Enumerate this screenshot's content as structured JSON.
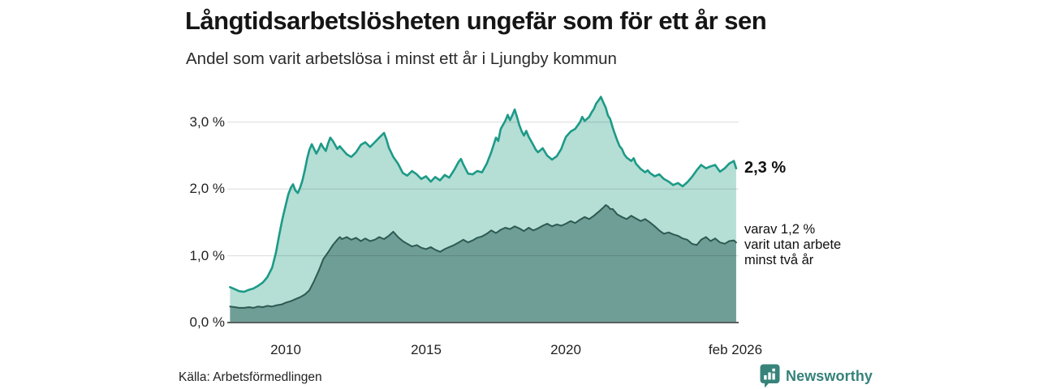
{
  "header": {
    "title": "Långtidsarbetslösheten ungefär som för ett år sen",
    "subtitle": "Andel som varit arbetslösa i minst ett år i Ljungby kommun"
  },
  "chart_data": {
    "type": "area",
    "title": "Långtidsarbetslösheten ungefär som för ett år sen",
    "subtitle": "Andel som varit arbetslösa i minst ett år i Ljungby kommun",
    "unit": "%",
    "grid": true,
    "x_axis": {
      "unit": "decimal_year_monthly",
      "range": [
        2007.9,
        2026.17
      ],
      "ticks": [
        {
          "value": 2010,
          "label": "2010"
        },
        {
          "value": 2015,
          "label": "2015"
        },
        {
          "value": 2020,
          "label": "2020"
        },
        {
          "value": 2026.08,
          "label": "feb 2026"
        }
      ]
    },
    "y_axis": {
      "range": [
        0,
        3.5
      ],
      "ticks": [
        {
          "value": 0,
          "label": "0,0 %"
        },
        {
          "value": 1,
          "label": "1,0 %"
        },
        {
          "value": 2,
          "label": "2,0 %"
        },
        {
          "value": 3,
          "label": "3,0 %"
        }
      ]
    },
    "annotations": {
      "end_value": "2,3 %",
      "end_note": "varav 1,2 %\nvarit utan arbete\nminst två år"
    },
    "series": [
      {
        "name": "Andel arbetslösa minst ett år",
        "latest_label": "2,3 %",
        "line_color": "#1d9a87",
        "fill_color": "#b5ded5",
        "points": [
          [
            2008.0,
            0.53
          ],
          [
            2008.17,
            0.5
          ],
          [
            2008.33,
            0.47
          ],
          [
            2008.5,
            0.46
          ],
          [
            2008.67,
            0.49
          ],
          [
            2008.83,
            0.51
          ],
          [
            2009.0,
            0.55
          ],
          [
            2009.17,
            0.6
          ],
          [
            2009.33,
            0.68
          ],
          [
            2009.5,
            0.82
          ],
          [
            2009.64,
            1.05
          ],
          [
            2009.75,
            1.3
          ],
          [
            2009.87,
            1.55
          ],
          [
            2010.0,
            1.78
          ],
          [
            2010.08,
            1.92
          ],
          [
            2010.17,
            2.02
          ],
          [
            2010.25,
            2.07
          ],
          [
            2010.33,
            1.98
          ],
          [
            2010.42,
            1.94
          ],
          [
            2010.5,
            2.02
          ],
          [
            2010.58,
            2.12
          ],
          [
            2010.67,
            2.28
          ],
          [
            2010.75,
            2.45
          ],
          [
            2010.83,
            2.58
          ],
          [
            2010.92,
            2.67
          ],
          [
            2011.0,
            2.6
          ],
          [
            2011.08,
            2.53
          ],
          [
            2011.17,
            2.6
          ],
          [
            2011.25,
            2.68
          ],
          [
            2011.33,
            2.62
          ],
          [
            2011.42,
            2.57
          ],
          [
            2011.5,
            2.68
          ],
          [
            2011.58,
            2.77
          ],
          [
            2011.67,
            2.72
          ],
          [
            2011.75,
            2.66
          ],
          [
            2011.83,
            2.6
          ],
          [
            2011.92,
            2.64
          ],
          [
            2012.0,
            2.6
          ],
          [
            2012.17,
            2.52
          ],
          [
            2012.33,
            2.48
          ],
          [
            2012.5,
            2.55
          ],
          [
            2012.67,
            2.66
          ],
          [
            2012.83,
            2.7
          ],
          [
            2013.0,
            2.63
          ],
          [
            2013.17,
            2.7
          ],
          [
            2013.33,
            2.77
          ],
          [
            2013.5,
            2.84
          ],
          [
            2013.58,
            2.75
          ],
          [
            2013.67,
            2.62
          ],
          [
            2013.83,
            2.48
          ],
          [
            2014.0,
            2.38
          ],
          [
            2014.17,
            2.24
          ],
          [
            2014.33,
            2.2
          ],
          [
            2014.5,
            2.27
          ],
          [
            2014.67,
            2.22
          ],
          [
            2014.83,
            2.15
          ],
          [
            2015.0,
            2.19
          ],
          [
            2015.17,
            2.11
          ],
          [
            2015.33,
            2.18
          ],
          [
            2015.5,
            2.13
          ],
          [
            2015.67,
            2.21
          ],
          [
            2015.83,
            2.17
          ],
          [
            2016.0,
            2.28
          ],
          [
            2016.17,
            2.41
          ],
          [
            2016.25,
            2.45
          ],
          [
            2016.33,
            2.37
          ],
          [
            2016.5,
            2.23
          ],
          [
            2016.67,
            2.22
          ],
          [
            2016.83,
            2.27
          ],
          [
            2017.0,
            2.25
          ],
          [
            2017.17,
            2.38
          ],
          [
            2017.33,
            2.55
          ],
          [
            2017.5,
            2.77
          ],
          [
            2017.58,
            2.72
          ],
          [
            2017.67,
            2.9
          ],
          [
            2017.83,
            3.02
          ],
          [
            2017.92,
            3.11
          ],
          [
            2018.0,
            3.03
          ],
          [
            2018.08,
            3.1
          ],
          [
            2018.17,
            3.19
          ],
          [
            2018.25,
            3.08
          ],
          [
            2018.33,
            2.96
          ],
          [
            2018.42,
            2.86
          ],
          [
            2018.5,
            2.8
          ],
          [
            2018.58,
            2.87
          ],
          [
            2018.67,
            2.78
          ],
          [
            2018.83,
            2.66
          ],
          [
            2018.92,
            2.59
          ],
          [
            2019.0,
            2.55
          ],
          [
            2019.17,
            2.61
          ],
          [
            2019.33,
            2.5
          ],
          [
            2019.5,
            2.44
          ],
          [
            2019.67,
            2.49
          ],
          [
            2019.83,
            2.6
          ],
          [
            2019.92,
            2.7
          ],
          [
            2020.0,
            2.78
          ],
          [
            2020.17,
            2.86
          ],
          [
            2020.33,
            2.9
          ],
          [
            2020.5,
            3.0
          ],
          [
            2020.58,
            3.08
          ],
          [
            2020.67,
            3.02
          ],
          [
            2020.83,
            3.08
          ],
          [
            2020.92,
            3.15
          ],
          [
            2021.0,
            3.2
          ],
          [
            2021.08,
            3.28
          ],
          [
            2021.17,
            3.33
          ],
          [
            2021.25,
            3.38
          ],
          [
            2021.33,
            3.3
          ],
          [
            2021.42,
            3.22
          ],
          [
            2021.5,
            3.1
          ],
          [
            2021.58,
            3.05
          ],
          [
            2021.67,
            2.92
          ],
          [
            2021.75,
            2.82
          ],
          [
            2021.83,
            2.73
          ],
          [
            2021.92,
            2.64
          ],
          [
            2022.0,
            2.6
          ],
          [
            2022.08,
            2.52
          ],
          [
            2022.17,
            2.47
          ],
          [
            2022.33,
            2.42
          ],
          [
            2022.42,
            2.46
          ],
          [
            2022.5,
            2.38
          ],
          [
            2022.67,
            2.3
          ],
          [
            2022.83,
            2.25
          ],
          [
            2022.92,
            2.28
          ],
          [
            2023.0,
            2.24
          ],
          [
            2023.17,
            2.19
          ],
          [
            2023.33,
            2.22
          ],
          [
            2023.5,
            2.15
          ],
          [
            2023.67,
            2.11
          ],
          [
            2023.83,
            2.06
          ],
          [
            2024.0,
            2.09
          ],
          [
            2024.17,
            2.04
          ],
          [
            2024.33,
            2.1
          ],
          [
            2024.5,
            2.18
          ],
          [
            2024.67,
            2.28
          ],
          [
            2024.83,
            2.36
          ],
          [
            2025.0,
            2.31
          ],
          [
            2025.17,
            2.34
          ],
          [
            2025.33,
            2.36
          ],
          [
            2025.5,
            2.26
          ],
          [
            2025.67,
            2.31
          ],
          [
            2025.83,
            2.38
          ],
          [
            2026.0,
            2.42
          ],
          [
            2026.08,
            2.31
          ]
        ]
      },
      {
        "name": "Varav utan arbete minst två år",
        "latest_label": "1,2 %",
        "line_color": "#2d5a53",
        "fill_color": "#6f9e97",
        "points": [
          [
            2008.0,
            0.24
          ],
          [
            2008.17,
            0.23
          ],
          [
            2008.33,
            0.22
          ],
          [
            2008.5,
            0.22
          ],
          [
            2008.67,
            0.23
          ],
          [
            2008.83,
            0.22
          ],
          [
            2009.0,
            0.24
          ],
          [
            2009.17,
            0.23
          ],
          [
            2009.33,
            0.25
          ],
          [
            2009.5,
            0.24
          ],
          [
            2009.67,
            0.26
          ],
          [
            2009.83,
            0.27
          ],
          [
            2010.0,
            0.3
          ],
          [
            2010.17,
            0.32
          ],
          [
            2010.33,
            0.35
          ],
          [
            2010.5,
            0.38
          ],
          [
            2010.67,
            0.42
          ],
          [
            2010.83,
            0.48
          ],
          [
            2011.0,
            0.62
          ],
          [
            2011.17,
            0.78
          ],
          [
            2011.33,
            0.95
          ],
          [
            2011.5,
            1.05
          ],
          [
            2011.67,
            1.16
          ],
          [
            2011.83,
            1.24
          ],
          [
            2011.92,
            1.28
          ],
          [
            2012.0,
            1.25
          ],
          [
            2012.17,
            1.28
          ],
          [
            2012.33,
            1.24
          ],
          [
            2012.5,
            1.27
          ],
          [
            2012.67,
            1.22
          ],
          [
            2012.83,
            1.26
          ],
          [
            2013.0,
            1.22
          ],
          [
            2013.17,
            1.24
          ],
          [
            2013.33,
            1.28
          ],
          [
            2013.5,
            1.25
          ],
          [
            2013.67,
            1.3
          ],
          [
            2013.83,
            1.36
          ],
          [
            2014.0,
            1.28
          ],
          [
            2014.17,
            1.22
          ],
          [
            2014.33,
            1.18
          ],
          [
            2014.5,
            1.14
          ],
          [
            2014.67,
            1.16
          ],
          [
            2014.83,
            1.12
          ],
          [
            2015.0,
            1.1
          ],
          [
            2015.17,
            1.13
          ],
          [
            2015.33,
            1.09
          ],
          [
            2015.5,
            1.06
          ],
          [
            2015.67,
            1.1
          ],
          [
            2015.83,
            1.13
          ],
          [
            2016.0,
            1.16
          ],
          [
            2016.17,
            1.2
          ],
          [
            2016.33,
            1.24
          ],
          [
            2016.5,
            1.2
          ],
          [
            2016.67,
            1.23
          ],
          [
            2016.83,
            1.27
          ],
          [
            2017.0,
            1.29
          ],
          [
            2017.17,
            1.33
          ],
          [
            2017.33,
            1.38
          ],
          [
            2017.5,
            1.34
          ],
          [
            2017.67,
            1.39
          ],
          [
            2017.83,
            1.42
          ],
          [
            2018.0,
            1.4
          ],
          [
            2018.17,
            1.44
          ],
          [
            2018.33,
            1.41
          ],
          [
            2018.5,
            1.37
          ],
          [
            2018.67,
            1.42
          ],
          [
            2018.83,
            1.38
          ],
          [
            2019.0,
            1.41
          ],
          [
            2019.17,
            1.45
          ],
          [
            2019.33,
            1.48
          ],
          [
            2019.5,
            1.44
          ],
          [
            2019.67,
            1.47
          ],
          [
            2019.83,
            1.45
          ],
          [
            2020.0,
            1.48
          ],
          [
            2020.17,
            1.52
          ],
          [
            2020.33,
            1.49
          ],
          [
            2020.5,
            1.54
          ],
          [
            2020.67,
            1.58
          ],
          [
            2020.83,
            1.55
          ],
          [
            2021.0,
            1.6
          ],
          [
            2021.17,
            1.66
          ],
          [
            2021.33,
            1.72
          ],
          [
            2021.42,
            1.76
          ],
          [
            2021.5,
            1.74
          ],
          [
            2021.58,
            1.7
          ],
          [
            2021.67,
            1.7
          ],
          [
            2021.75,
            1.66
          ],
          [
            2021.83,
            1.62
          ],
          [
            2022.0,
            1.58
          ],
          [
            2022.17,
            1.55
          ],
          [
            2022.33,
            1.6
          ],
          [
            2022.5,
            1.56
          ],
          [
            2022.67,
            1.52
          ],
          [
            2022.83,
            1.55
          ],
          [
            2023.0,
            1.5
          ],
          [
            2023.17,
            1.44
          ],
          [
            2023.33,
            1.38
          ],
          [
            2023.5,
            1.33
          ],
          [
            2023.67,
            1.35
          ],
          [
            2023.83,
            1.32
          ],
          [
            2024.0,
            1.3
          ],
          [
            2024.17,
            1.26
          ],
          [
            2024.33,
            1.24
          ],
          [
            2024.5,
            1.18
          ],
          [
            2024.67,
            1.16
          ],
          [
            2024.83,
            1.24
          ],
          [
            2025.0,
            1.28
          ],
          [
            2025.17,
            1.22
          ],
          [
            2025.33,
            1.26
          ],
          [
            2025.5,
            1.2
          ],
          [
            2025.67,
            1.18
          ],
          [
            2025.83,
            1.22
          ],
          [
            2026.0,
            1.23
          ],
          [
            2026.08,
            1.2
          ]
        ]
      }
    ]
  },
  "footer": {
    "source": "Källa: Arbetsförmedlingen",
    "brand": "Newsworthy"
  },
  "colors": {
    "series1_line": "#1d9a87",
    "series1_fill": "#b5ded5",
    "series2_line": "#2d5a53",
    "series2_fill": "#6f9e97",
    "gridline": "#d9d9d9",
    "zero_line": "#5b5f5e",
    "brand_teal": "#35827a",
    "text": "#111111"
  }
}
